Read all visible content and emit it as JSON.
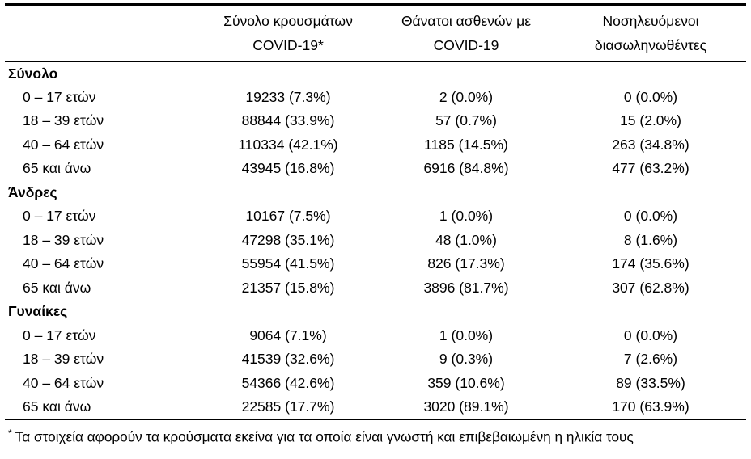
{
  "page": {
    "background_color": "#ffffff",
    "text_color": "#000000",
    "rule_color": "#000000"
  },
  "table": {
    "headers": [
      "Σύνολο κρουσμάτων\nCOVID-19*",
      "Θάνατοι ασθενών με\nCOVID-19",
      "Νοσηλευόμενοι\nδιασωληνωθέντες"
    ],
    "sections": [
      {
        "label": "Σύνολο",
        "rows": [
          {
            "label": "0 – 17 ετών",
            "cases": "19233 (7.3%)",
            "deaths": "2 (0.0%)",
            "intubated": "0 (0.0%)"
          },
          {
            "label": "18 – 39 ετών",
            "cases": "88844 (33.9%)",
            "deaths": "57 (0.7%)",
            "intubated": "15 (2.0%)"
          },
          {
            "label": "40 – 64 ετών",
            "cases": "110334 (42.1%)",
            "deaths": "1185 (14.5%)",
            "intubated": "263 (34.8%)"
          },
          {
            "label": "65 και άνω",
            "cases": "43945 (16.8%)",
            "deaths": "6916 (84.8%)",
            "intubated": "477 (63.2%)"
          }
        ]
      },
      {
        "label": "Άνδρες",
        "rows": [
          {
            "label": "0 – 17 ετών",
            "cases": "10167 (7.5%)",
            "deaths": "1 (0.0%)",
            "intubated": "0 (0.0%)"
          },
          {
            "label": "18 – 39 ετών",
            "cases": "47298 (35.1%)",
            "deaths": "48 (1.0%)",
            "intubated": "8 (1.6%)"
          },
          {
            "label": "40 – 64 ετών",
            "cases": "55954 (41.5%)",
            "deaths": "826 (17.3%)",
            "intubated": "174 (35.6%)"
          },
          {
            "label": "65 και άνω",
            "cases": "21357 (15.8%)",
            "deaths": "3896 (81.7%)",
            "intubated": "307 (62.8%)"
          }
        ]
      },
      {
        "label": "Γυναίκες",
        "rows": [
          {
            "label": "0 – 17 ετών",
            "cases": "9064 (7.1%)",
            "deaths": "1 (0.0%)",
            "intubated": "0 (0.0%)"
          },
          {
            "label": "18 – 39 ετών",
            "cases": "41539 (32.6%)",
            "deaths": "9 (0.3%)",
            "intubated": "7 (2.6%)"
          },
          {
            "label": "40 – 64 ετών",
            "cases": "54366 (42.6%)",
            "deaths": "359 (10.6%)",
            "intubated": "89 (33.5%)"
          },
          {
            "label": "65 και άνω",
            "cases": "22585 (17.7%)",
            "deaths": "3020 (89.1%)",
            "intubated": "170 (63.9%)"
          }
        ]
      }
    ]
  },
  "footnote": {
    "marker": "*",
    "text": "Τα στοιχεία αφορούν τα κρούσματα εκείνα για τα οποία είναι γνωστή και επιβεβαιωμένη η ηλικία τους"
  }
}
